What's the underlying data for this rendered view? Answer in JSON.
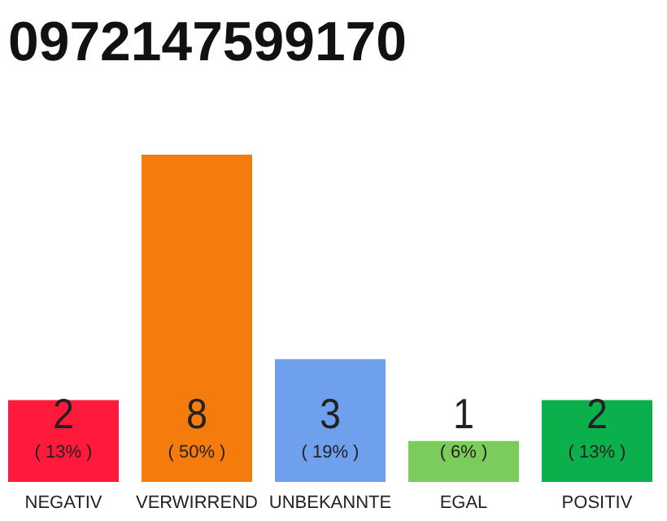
{
  "chart_data": {
    "type": "bar",
    "title": "0972147599170",
    "categories": [
      "NEGATIV",
      "VERWIRREND",
      "UNBEKANNTE",
      "EGAL",
      "POSITIV"
    ],
    "values": [
      2,
      8,
      3,
      1,
      2
    ],
    "colors": [
      "#ff1a3c",
      "#f57c0c",
      "#6ea0ee",
      "#7ccc5c",
      "#0cb04a"
    ],
    "tick_labels": "x",
    "data_labels": true,
    "annotations": [
      "( 13% )",
      "( 50% )",
      "( 19% )",
      "( 6% )",
      "( 13% )"
    ]
  }
}
